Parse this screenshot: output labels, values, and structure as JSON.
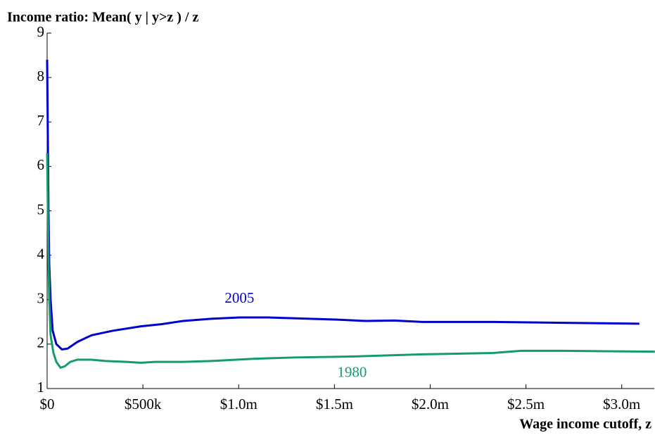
{
  "chart_data": {
    "type": "line",
    "title": "Income ratio: Mean( y | y>z ) / z",
    "x_label": "Wage income cutoff, z",
    "series": [
      {
        "name": "2005",
        "color": "#0000d0",
        "x": [
          0,
          4000,
          7000,
          11000,
          18000,
          29000,
          48000,
          77000,
          107000,
          158000,
          232000,
          342000,
          489000,
          599000,
          709000,
          857000,
          1004000,
          1151000,
          1298000,
          1518000,
          1665000,
          1812000,
          1959000,
          2327000,
          2695000,
          3092000
        ],
        "values": [
          8.4,
          6.5,
          5.0,
          3.8,
          3.0,
          2.3,
          2.0,
          1.88,
          1.9,
          2.05,
          2.2,
          2.3,
          2.4,
          2.45,
          2.52,
          2.57,
          2.6,
          2.6,
          2.58,
          2.55,
          2.52,
          2.53,
          2.5,
          2.5,
          2.48,
          2.46
        ]
      },
      {
        "name": "1980",
        "color": "#169b6b",
        "x": [
          0,
          4000,
          7000,
          11000,
          18000,
          33000,
          48000,
          70000,
          92000,
          121000,
          158000,
          232000,
          305000,
          415000,
          489000,
          563000,
          710000,
          857000,
          1077000,
          1298000,
          1592000,
          1959000,
          2327000,
          2474000,
          2695000,
          2915000,
          3173000
        ],
        "values": [
          6.3,
          5.0,
          3.8,
          3.0,
          2.2,
          1.8,
          1.6,
          1.47,
          1.5,
          1.6,
          1.65,
          1.65,
          1.62,
          1.6,
          1.58,
          1.6,
          1.6,
          1.62,
          1.67,
          1.7,
          1.72,
          1.77,
          1.8,
          1.85,
          1.85,
          1.84,
          1.83
        ]
      }
    ],
    "xlim": [
      0,
      3170000
    ],
    "ylim": [
      1,
      9
    ],
    "xticks": [
      {
        "value": 0,
        "label": "$0"
      },
      {
        "value": 500000,
        "label": "$500k"
      },
      {
        "value": 1000000,
        "label": "$1.0m"
      },
      {
        "value": 1500000,
        "label": "$1.5m"
      },
      {
        "value": 2000000,
        "label": "$2.0m"
      },
      {
        "value": 2500000,
        "label": "$2.5m"
      },
      {
        "value": 3000000,
        "label": "$3.0m"
      }
    ],
    "yticks": [
      1,
      2,
      3,
      4,
      5,
      6,
      7,
      8,
      9
    ],
    "grid": false
  }
}
